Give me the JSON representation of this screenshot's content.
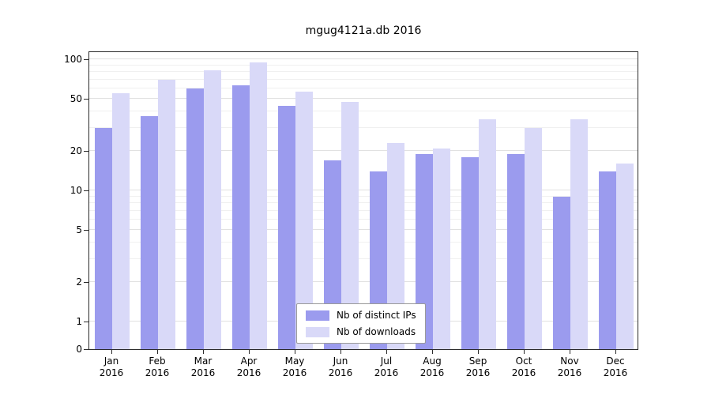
{
  "chart_data": {
    "type": "bar",
    "title": "mgug4121a.db 2016",
    "categories": [
      "Jan",
      "Feb",
      "Mar",
      "Apr",
      "May",
      "Jun",
      "Jul",
      "Aug",
      "Sep",
      "Oct",
      "Nov",
      "Dec"
    ],
    "year_label": "2016",
    "series": [
      {
        "name": "Nb of distinct IPs",
        "color": "#9b9bee",
        "values": [
          30,
          37,
          60,
          63,
          44,
          17,
          14,
          19,
          18,
          19,
          9,
          14
        ]
      },
      {
        "name": "Nb of downloads",
        "color": "#d9d9f8",
        "values": [
          55,
          70,
          82,
          95,
          57,
          47,
          23,
          21,
          35,
          30,
          35,
          16
        ]
      }
    ],
    "yscale": "symlog",
    "yticks": [
      0,
      1,
      2,
      5,
      10,
      20,
      50,
      100
    ],
    "yminorticks": [
      3,
      4,
      6,
      7,
      8,
      9,
      30,
      40,
      60,
      70,
      80,
      90
    ],
    "ylim": [
      0,
      110
    ],
    "grid": true,
    "legend_position": "lower center"
  },
  "colors": {
    "grid_major": "#e1e1e1",
    "grid_minor": "#f0f0f0",
    "axis": "#2a2a2a",
    "background": "#ffffff"
  }
}
